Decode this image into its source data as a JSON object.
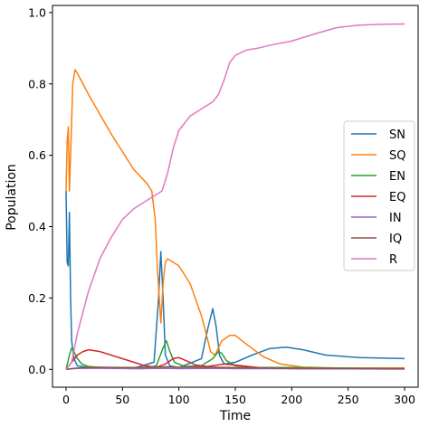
{
  "chart_data": {
    "type": "line",
    "title": "",
    "xlabel": "Time",
    "ylabel": "Population",
    "xlim": [
      -12,
      312
    ],
    "ylim": [
      -0.05,
      1.02
    ],
    "xticks": [
      0,
      50,
      100,
      150,
      200,
      250,
      300
    ],
    "yticks": [
      0.0,
      0.2,
      0.4,
      0.6,
      0.8,
      1.0
    ],
    "xtick_labels": [
      "0",
      "50",
      "100",
      "150",
      "200",
      "250",
      "300"
    ],
    "ytick_labels": [
      "0.0",
      "0.2",
      "0.4",
      "0.6",
      "0.8",
      "1.0"
    ],
    "grid": false,
    "legend_position": "center-right",
    "series": [
      {
        "name": "SN",
        "color": "#1f77b4",
        "points": [
          [
            0,
            0.5
          ],
          [
            1,
            0.3
          ],
          [
            2,
            0.29
          ],
          [
            3,
            0.44
          ],
          [
            4,
            0.2
          ],
          [
            5,
            0.08
          ],
          [
            7,
            0.03
          ],
          [
            10,
            0.01
          ],
          [
            20,
            0.005
          ],
          [
            60,
            0.003
          ],
          [
            78,
            0.02
          ],
          [
            82,
            0.2
          ],
          [
            84,
            0.33
          ],
          [
            86,
            0.2
          ],
          [
            88,
            0.04
          ],
          [
            92,
            0.01
          ],
          [
            100,
            0.005
          ],
          [
            120,
            0.03
          ],
          [
            126,
            0.12
          ],
          [
            130,
            0.17
          ],
          [
            133,
            0.12
          ],
          [
            136,
            0.04
          ],
          [
            140,
            0.015
          ],
          [
            150,
            0.02
          ],
          [
            165,
            0.04
          ],
          [
            180,
            0.058
          ],
          [
            195,
            0.062
          ],
          [
            210,
            0.055
          ],
          [
            230,
            0.04
          ],
          [
            260,
            0.033
          ],
          [
            300,
            0.03
          ]
        ]
      },
      {
        "name": "SQ",
        "color": "#ff7f0e",
        "points": [
          [
            0,
            0.5
          ],
          [
            1,
            0.64
          ],
          [
            2,
            0.68
          ],
          [
            3,
            0.5
          ],
          [
            4,
            0.6
          ],
          [
            6,
            0.8
          ],
          [
            8,
            0.84
          ],
          [
            10,
            0.83
          ],
          [
            20,
            0.77
          ],
          [
            40,
            0.66
          ],
          [
            60,
            0.56
          ],
          [
            72,
            0.52
          ],
          [
            76,
            0.5
          ],
          [
            79,
            0.42
          ],
          [
            81,
            0.28
          ],
          [
            83,
            0.18
          ],
          [
            84,
            0.13
          ],
          [
            86,
            0.24
          ],
          [
            88,
            0.3
          ],
          [
            90,
            0.31
          ],
          [
            100,
            0.29
          ],
          [
            110,
            0.24
          ],
          [
            120,
            0.15
          ],
          [
            125,
            0.09
          ],
          [
            128,
            0.05
          ],
          [
            132,
            0.04
          ],
          [
            138,
            0.08
          ],
          [
            145,
            0.095
          ],
          [
            150,
            0.095
          ],
          [
            160,
            0.07
          ],
          [
            175,
            0.035
          ],
          [
            190,
            0.015
          ],
          [
            210,
            0.006
          ],
          [
            240,
            0.004
          ],
          [
            300,
            0.004
          ]
        ]
      },
      {
        "name": "EN",
        "color": "#2ca02c",
        "points": [
          [
            0,
            0
          ],
          [
            3,
            0.04
          ],
          [
            5,
            0.06
          ],
          [
            7,
            0.05
          ],
          [
            10,
            0.03
          ],
          [
            14,
            0.015
          ],
          [
            20,
            0.008
          ],
          [
            40,
            0.003
          ],
          [
            70,
            0.002
          ],
          [
            80,
            0.01
          ],
          [
            86,
            0.06
          ],
          [
            89,
            0.08
          ],
          [
            92,
            0.05
          ],
          [
            96,
            0.02
          ],
          [
            105,
            0.008
          ],
          [
            120,
            0.01
          ],
          [
            130,
            0.03
          ],
          [
            135,
            0.05
          ],
          [
            138,
            0.045
          ],
          [
            142,
            0.025
          ],
          [
            150,
            0.01
          ],
          [
            170,
            0.005
          ],
          [
            200,
            0.005
          ],
          [
            230,
            0.004
          ],
          [
            260,
            0.003
          ],
          [
            300,
            0.002
          ]
        ]
      },
      {
        "name": "EQ",
        "color": "#d62728",
        "points": [
          [
            0,
            0
          ],
          [
            5,
            0.02
          ],
          [
            10,
            0.04
          ],
          [
            15,
            0.05
          ],
          [
            20,
            0.055
          ],
          [
            30,
            0.05
          ],
          [
            45,
            0.035
          ],
          [
            60,
            0.02
          ],
          [
            70,
            0.01
          ],
          [
            80,
            0.006
          ],
          [
            88,
            0.015
          ],
          [
            95,
            0.03
          ],
          [
            100,
            0.033
          ],
          [
            106,
            0.025
          ],
          [
            115,
            0.012
          ],
          [
            125,
            0.008
          ],
          [
            140,
            0.015
          ],
          [
            150,
            0.012
          ],
          [
            170,
            0.005
          ],
          [
            200,
            0.002
          ],
          [
            300,
            0.001
          ]
        ]
      },
      {
        "name": "IN",
        "color": "#9467bd",
        "points": [
          [
            0,
            0
          ],
          [
            10,
            0.003
          ],
          [
            30,
            0.003
          ],
          [
            60,
            0.002
          ],
          [
            90,
            0.003
          ],
          [
            100,
            0.002
          ],
          [
            130,
            0.003
          ],
          [
            150,
            0.002
          ],
          [
            200,
            0.002
          ],
          [
            300,
            0.001
          ]
        ]
      },
      {
        "name": "IQ",
        "color": "#8c564b",
        "points": [
          [
            0,
            0
          ],
          [
            10,
            0.004
          ],
          [
            30,
            0.006
          ],
          [
            60,
            0.005
          ],
          [
            90,
            0.007
          ],
          [
            100,
            0.006
          ],
          [
            130,
            0.006
          ],
          [
            150,
            0.005
          ],
          [
            200,
            0.003
          ],
          [
            300,
            0.002
          ]
        ]
      },
      {
        "name": "R",
        "color": "#e377c2",
        "points": [
          [
            0,
            0
          ],
          [
            5,
            0.02
          ],
          [
            10,
            0.1
          ],
          [
            20,
            0.22
          ],
          [
            30,
            0.31
          ],
          [
            40,
            0.37
          ],
          [
            50,
            0.42
          ],
          [
            60,
            0.45
          ],
          [
            70,
            0.47
          ],
          [
            80,
            0.49
          ],
          [
            85,
            0.5
          ],
          [
            90,
            0.55
          ],
          [
            95,
            0.62
          ],
          [
            100,
            0.67
          ],
          [
            110,
            0.71
          ],
          [
            120,
            0.73
          ],
          [
            130,
            0.75
          ],
          [
            135,
            0.77
          ],
          [
            140,
            0.81
          ],
          [
            145,
            0.86
          ],
          [
            150,
            0.88
          ],
          [
            160,
            0.895
          ],
          [
            170,
            0.9
          ],
          [
            180,
            0.908
          ],
          [
            200,
            0.92
          ],
          [
            220,
            0.94
          ],
          [
            240,
            0.958
          ],
          [
            260,
            0.965
          ],
          [
            280,
            0.967
          ],
          [
            300,
            0.968
          ]
        ]
      }
    ]
  }
}
